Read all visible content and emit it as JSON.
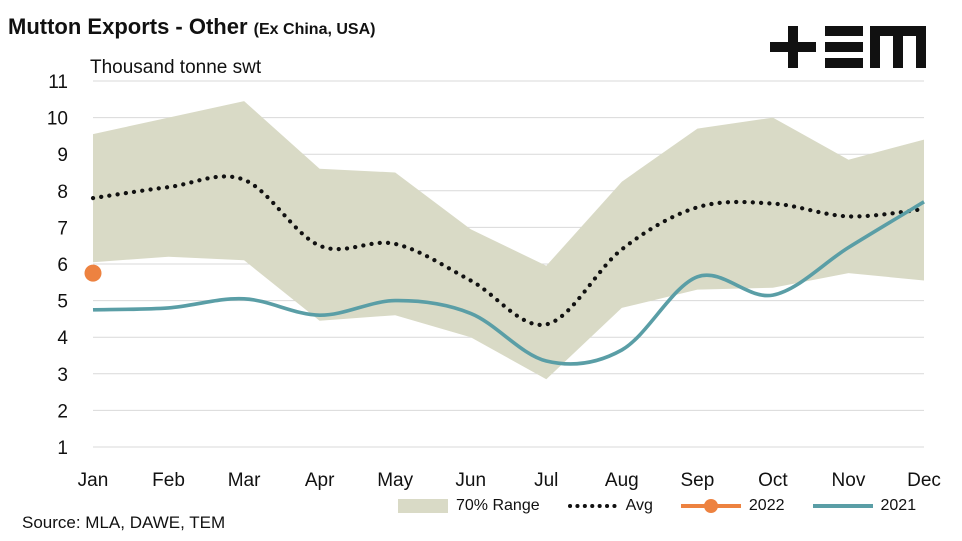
{
  "header": {
    "title_main": "Mutton Exports - Other",
    "title_sub": "(Ex China, USA)",
    "unit_label": "Thousand tonne swt"
  },
  "footer": {
    "source": "Source: MLA, DAWE, TEM"
  },
  "logo": {
    "text": "TEM",
    "color": "#111111"
  },
  "colors": {
    "range": "#d9dac6",
    "avg": "#111111",
    "y2022": "#ed8240",
    "y2021": "#5a9ea6",
    "grid": "#d9d9d9"
  },
  "chart_data": {
    "type": "line",
    "categories": [
      "Jan",
      "Feb",
      "Mar",
      "Apr",
      "May",
      "Jun",
      "Jul",
      "Aug",
      "Sep",
      "Oct",
      "Nov",
      "Dec"
    ],
    "ylim": [
      1,
      11
    ],
    "yticks": [
      "1",
      "2",
      "3",
      "4",
      "5",
      "6",
      "7",
      "8",
      "9",
      "10",
      "11"
    ],
    "ylabel": "Thousand tonne swt",
    "grid": true,
    "legend_position": "bottom-right",
    "series": [
      {
        "name": "70% Range",
        "kind": "band",
        "upper": [
          9.55,
          10.0,
          10.45,
          8.6,
          8.5,
          6.95,
          5.95,
          8.25,
          9.7,
          10.0,
          8.85,
          9.4
        ],
        "lower": [
          6.05,
          6.2,
          6.1,
          4.45,
          4.6,
          4.0,
          2.85,
          4.8,
          5.3,
          5.35,
          5.75,
          5.55
        ]
      },
      {
        "name": "Avg",
        "kind": "dotted",
        "values": [
          7.8,
          8.1,
          8.3,
          6.5,
          6.55,
          5.55,
          4.35,
          6.4,
          7.55,
          7.65,
          7.3,
          7.5
        ]
      },
      {
        "name": "2022",
        "kind": "point",
        "values": [
          5.75,
          null,
          null,
          null,
          null,
          null,
          null,
          null,
          null,
          null,
          null,
          null
        ]
      },
      {
        "name": "2021",
        "kind": "line",
        "values": [
          4.75,
          4.8,
          5.05,
          4.6,
          5.0,
          4.65,
          3.35,
          3.65,
          5.65,
          5.15,
          6.45,
          7.7
        ]
      }
    ],
    "legend": [
      "70% Range",
      "Avg",
      "2022",
      "2021"
    ]
  }
}
